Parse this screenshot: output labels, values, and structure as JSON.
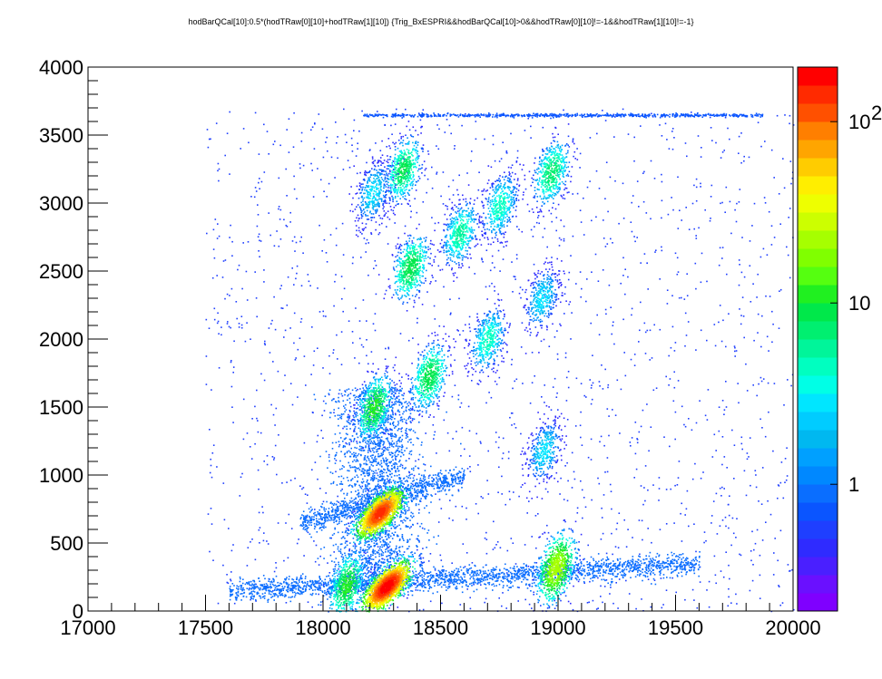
{
  "chart_data": {
    "type": "heatmap",
    "title": "hodBarQCal[10]:0.5*(hodTRaw[0][10]+hodTRaw[1][10]) {Trig_BxESPRI&&hodBarQCal[10]>0&&hodTRaw[0][10]!=-1&&hodTRaw[1][10]!=-1}",
    "xlim": [
      17000,
      20000
    ],
    "ylim": [
      0,
      4000
    ],
    "x_ticks": [
      "17000",
      "17500",
      "18000",
      "18500",
      "19000",
      "19500",
      "20000"
    ],
    "y_ticks": [
      "0",
      "500",
      "1000",
      "1500",
      "2000",
      "2500",
      "3000",
      "3500",
      "4000"
    ],
    "colorbar": {
      "scale": "log",
      "range": [
        0.2,
        200
      ],
      "labels": [
        {
          "value": 1,
          "text": "1"
        },
        {
          "value": 10,
          "text": "10"
        },
        {
          "value": 100,
          "text": "10",
          "sup": "2"
        }
      ],
      "colors": [
        "#7f00ff",
        "#6a10ff",
        "#4a1fff",
        "#2f2bff",
        "#1f3fff",
        "#0a55ff",
        "#0a6eff",
        "#0088ff",
        "#00a0ff",
        "#00b8f0",
        "#00ccff",
        "#00e6ff",
        "#00ffe6",
        "#00ffc0",
        "#00f59a",
        "#00ef70",
        "#00e84a",
        "#20f020",
        "#55ff10",
        "#80ff00",
        "#a6ff00",
        "#ccff00",
        "#eeff00",
        "#ffee00",
        "#ffcc00",
        "#ffa500",
        "#ff7f00",
        "#ff5000",
        "#ff2a00",
        "#ff0000"
      ]
    },
    "clusters": [
      {
        "x": 18270,
        "y": 185,
        "peak": 200
      },
      {
        "x": 18100,
        "y": 195,
        "peak": 12
      },
      {
        "x": 18240,
        "y": 725,
        "peak": 150
      },
      {
        "x": 18990,
        "y": 320,
        "peak": 25
      },
      {
        "x": 18215,
        "y": 1500,
        "peak": 12
      },
      {
        "x": 18450,
        "y": 1730,
        "peak": 10
      },
      {
        "x": 18700,
        "y": 2000,
        "peak": 5
      },
      {
        "x": 18930,
        "y": 2300,
        "peak": 3
      },
      {
        "x": 18940,
        "y": 1180,
        "peak": 3
      },
      {
        "x": 18370,
        "y": 2530,
        "peak": 10
      },
      {
        "x": 18580,
        "y": 2780,
        "peak": 6
      },
      {
        "x": 18750,
        "y": 2980,
        "peak": 5
      },
      {
        "x": 18970,
        "y": 3230,
        "peak": 8
      },
      {
        "x": 18340,
        "y": 3250,
        "peak": 9
      },
      {
        "x": 18210,
        "y": 3080,
        "peak": 3
      }
    ]
  }
}
